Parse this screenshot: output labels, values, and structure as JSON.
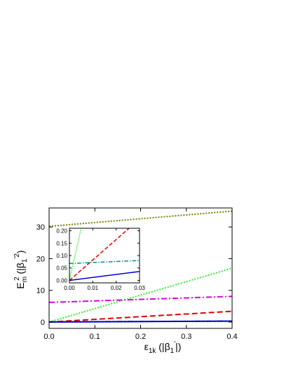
{
  "chart_data": [
    {
      "type": "line",
      "title": "",
      "xlabel_main": "ε",
      "xlabel_sub": "1k",
      "xlabel_rest": " (|β",
      "xlabel_sub2": "1",
      "xlabel_sup2": "'",
      "xlabel_end": "|)",
      "ylabel_main": "E",
      "ylabel_sub": "m",
      "ylabel_sup": "2",
      "ylabel_rest": " (|β",
      "ylabel_sub2": "1",
      "ylabel_sup2": "'",
      "ylabel_sup3": "2",
      "ylabel_end": ")",
      "xlim": [
        0.0,
        0.4
      ],
      "ylim": [
        -2,
        36
      ],
      "xticks": [
        "0.0",
        "0.1",
        "0.2",
        "0.3",
        "0.4"
      ],
      "yticks": [
        "0",
        "10",
        "20",
        "30"
      ],
      "xtick_values": [
        0.0,
        0.1,
        0.2,
        0.3,
        0.4
      ],
      "ytick_values": [
        0,
        10,
        20,
        30
      ],
      "grid": false,
      "legend": "none",
      "series": [
        {
          "style": "dotted",
          "color": "#7a7a00",
          "x": [
            0.0,
            0.4
          ],
          "y": [
            30.2,
            35.0
          ]
        },
        {
          "style": "dotted",
          "color": "#33ee33",
          "x": [
            0.0,
            0.4
          ],
          "y": [
            0.0,
            17.0
          ]
        },
        {
          "style": "dashdot",
          "color": "#dd00dd",
          "x": [
            0.0,
            0.4
          ],
          "y": [
            6.2,
            8.1
          ]
        },
        {
          "style": "dashed",
          "color": "#e00000",
          "x": [
            0.0,
            0.4
          ],
          "y": [
            0.0,
            3.4
          ]
        },
        {
          "style": "dashdot",
          "color": "#008b8b",
          "x": [
            0.0,
            0.4
          ],
          "y": [
            0.07,
            0.3
          ]
        },
        {
          "style": "solid",
          "color": "#0000cc",
          "x": [
            0.0,
            0.4
          ],
          "y": [
            0.0,
            0.3
          ]
        }
      ]
    },
    {
      "type": "line",
      "title": "",
      "xlim": [
        0.0,
        0.03
      ],
      "ylim": [
        -0.01,
        0.21
      ],
      "xticks": [
        "0.00",
        "0.01",
        "0.02",
        "0.03"
      ],
      "yticks": [
        "0.00",
        "0.05",
        "0.10",
        "0.15",
        "0.20"
      ],
      "xtick_values": [
        0.0,
        0.01,
        0.02,
        0.03
      ],
      "ytick_values": [
        0.0,
        0.05,
        0.1,
        0.15,
        0.2
      ],
      "grid": false,
      "series": [
        {
          "style": "dotted",
          "color": "#33ee33",
          "x": [
            0.0,
            0.005
          ],
          "y": [
            0.0,
            0.21
          ]
        },
        {
          "style": "dashed",
          "color": "#e00000",
          "x": [
            0.0,
            0.0255
          ],
          "y": [
            0.0,
            0.21
          ]
        },
        {
          "style": "dashdot",
          "color": "#008b8b",
          "x": [
            0.0,
            0.03
          ],
          "y": [
            0.068,
            0.08
          ]
        },
        {
          "style": "solid",
          "color": "#0000cc",
          "x": [
            0.0,
            0.03
          ],
          "y": [
            0.0,
            0.036
          ]
        }
      ]
    }
  ]
}
